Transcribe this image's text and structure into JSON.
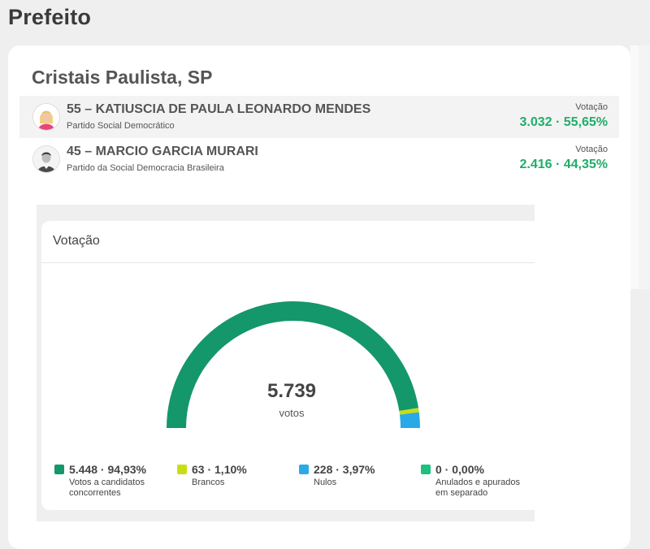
{
  "header": {
    "title": "Prefeito"
  },
  "location": {
    "name": "Cristais Paulista, SP"
  },
  "candidates": [
    {
      "name": "55 – KATIUSCIA DE PAULA LEONARDO MENDES",
      "party": "Partido Social Democrático",
      "votes_label": "Votação",
      "votes_value": "3.032 · 55,65%",
      "avatar_icon": "candidate-photo-female"
    },
    {
      "name": "45 – MARCIO GARCIA MURARI",
      "party": "Partido da Social Democracia Brasileira",
      "votes_label": "Votação",
      "votes_value": "2.416 · 44,35%",
      "avatar_icon": "candidate-photo-male"
    }
  ],
  "chart": {
    "title": "Votação",
    "total": "5.739",
    "total_label": "votos"
  },
  "legend": [
    {
      "value": "5.448 · 94,93%",
      "label": "Votos a candidatos concorrentes",
      "color": "#14976a"
    },
    {
      "value": "63 · 1,10%",
      "label": "Brancos",
      "color": "#c8de14"
    },
    {
      "value": "228 · 3,97%",
      "label": "Nulos",
      "color": "#29a9e6"
    },
    {
      "value": "0 · 0,00%",
      "label": "Anulados e apurados em separado",
      "color": "#1fbf7f"
    }
  ],
  "chart_data": {
    "type": "pie",
    "variant": "semi-donut gauge",
    "total": 5739,
    "slices": [
      {
        "label": "Votos a candidatos concorrentes",
        "value": 5448,
        "percent": 94.93,
        "color": "#14976a"
      },
      {
        "label": "Brancos",
        "value": 63,
        "percent": 1.1,
        "color": "#c8de14"
      },
      {
        "label": "Nulos",
        "value": 228,
        "percent": 3.97,
        "color": "#29a9e6"
      },
      {
        "label": "Anulados e apurados em separado",
        "value": 0,
        "percent": 0.0,
        "color": "#1fbf7f"
      }
    ]
  }
}
